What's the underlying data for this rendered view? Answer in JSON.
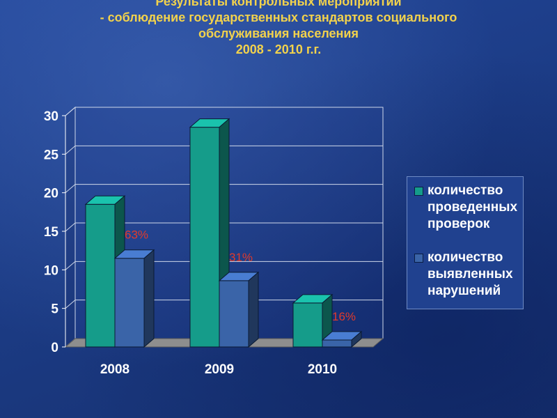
{
  "title_lines": [
    "Результаты контрольных мероприятий",
    "- соблюдение государственных стандартов социального",
    "обслуживания населения",
    "2008 - 2010 г.г."
  ],
  "colors": {
    "title": "#f2d24c",
    "series1": "#159c8a",
    "series2": "#3a64a8",
    "annotation": "#e23a2a",
    "axis_text": "#ffffff"
  },
  "chart_data": {
    "type": "bar",
    "categories": [
      "2008",
      "2009",
      "2010"
    ],
    "series": [
      {
        "name": "количество проведенных проверок",
        "values": [
          18.5,
          28.5,
          5.7
        ]
      },
      {
        "name": "количество выявленных нарушений",
        "values": [
          11.5,
          8.6,
          0.9
        ]
      }
    ],
    "annotations": [
      "63%",
      "31%",
      "16%"
    ],
    "y_ticks": [
      0,
      5,
      10,
      15,
      20,
      25,
      30
    ],
    "ylim": [
      0,
      30
    ],
    "grid": true,
    "legend_position": "right",
    "three_d": true
  }
}
